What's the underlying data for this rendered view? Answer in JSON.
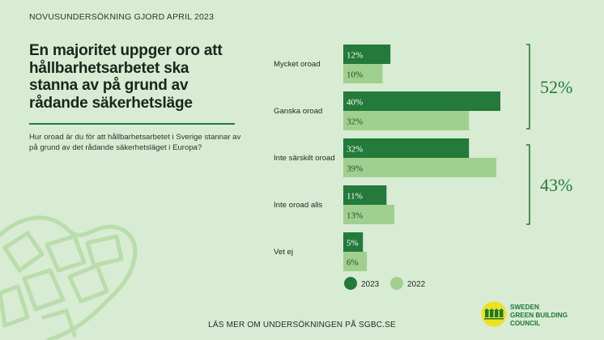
{
  "header": {
    "survey_label": "NOVUSUNDERSÖKNING GJORD APRIL 2023",
    "headline": "En majoritet uppger oro att hållbarhetsarbetet ska stanna av på grund av rådande säkerhetsläge",
    "question": "Hur oroad är du för att hållbarhetsarbetet i Sverige stannar av på grund av det rådande säkerhetsläget i Europa?"
  },
  "footer": {
    "link_text": "LÄS MER OM UNDERSÖKNINGEN PÅ SGBC.SE"
  },
  "logo": {
    "lines": [
      "SWEDEN",
      "GREEN BUILDING",
      "COUNCIL"
    ],
    "icon": "building-row-logo-icon"
  },
  "colors": {
    "background": "#d8ebd3",
    "series_2023": "#237a3a",
    "series_2022": "#9fd08e",
    "accent": "#237a3a",
    "logo_yellow": "#eee21d"
  },
  "chart_data": {
    "type": "bar",
    "orientation": "horizontal",
    "categories": [
      "Mycket oroad",
      "Ganska oroad",
      "Inte särskilt oroad",
      "Inte oroad alls",
      "Vet ej"
    ],
    "series": [
      {
        "name": "2023",
        "values": [
          12,
          40,
          32,
          11,
          5
        ],
        "labels": [
          "12%",
          "40%",
          "32%",
          "11%",
          "5%"
        ]
      },
      {
        "name": "2022",
        "values": [
          10,
          32,
          39,
          13,
          6
        ],
        "labels": [
          "10%",
          "32%",
          "39%",
          "13%",
          "6%"
        ]
      }
    ],
    "unit": "%",
    "xlim": [
      0,
      40
    ],
    "grid": false,
    "legend_position": "bottom",
    "brackets": [
      {
        "label": "52%",
        "categories": [
          "Mycket oroad",
          "Ganska oroad"
        ]
      },
      {
        "label": "43%",
        "categories": [
          "Inte särskilt oroad",
          "Inte oroad alls"
        ]
      }
    ]
  }
}
